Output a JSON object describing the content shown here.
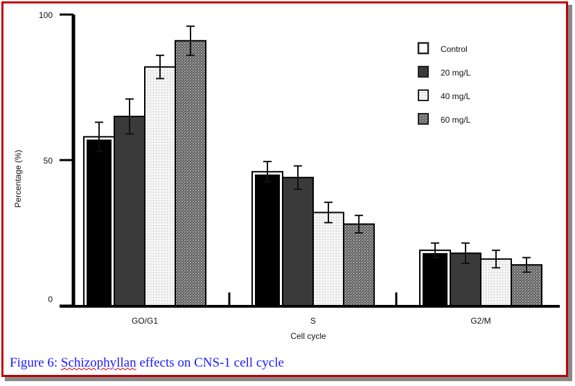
{
  "chart_data": {
    "type": "bar",
    "title": "",
    "xlabel": "Cell cycle",
    "ylabel": "Percentage (%)",
    "ylim": [
      0,
      100
    ],
    "yticks": [
      "0",
      "50",
      "100"
    ],
    "categories": [
      "GO/G1",
      "S",
      "G2/M"
    ],
    "legend_position": "top-right",
    "series": [
      {
        "name": "Control",
        "values": [
          58,
          46,
          19
        ],
        "errors": [
          5,
          3.5,
          2.5
        ],
        "fill": "#000000"
      },
      {
        "name": "20 mg/L",
        "values": [
          65,
          44,
          18
        ],
        "errors": [
          6,
          4,
          3.5
        ],
        "fill": "#3a3a3a"
      },
      {
        "name": "40 mg/L",
        "values": [
          82,
          32,
          16
        ],
        "errors": [
          4,
          3.5,
          3
        ],
        "fill": "#f2f2f2"
      },
      {
        "name": "60 mg/L",
        "values": [
          91,
          28,
          14
        ],
        "errors": [
          5,
          3,
          2.5
        ],
        "fill": "#777777"
      }
    ]
  },
  "caption": {
    "prefix": "Figure 6: ",
    "underlined": "Schizophyllan",
    "suffix": " effects on CNS-1 cell cycle"
  }
}
